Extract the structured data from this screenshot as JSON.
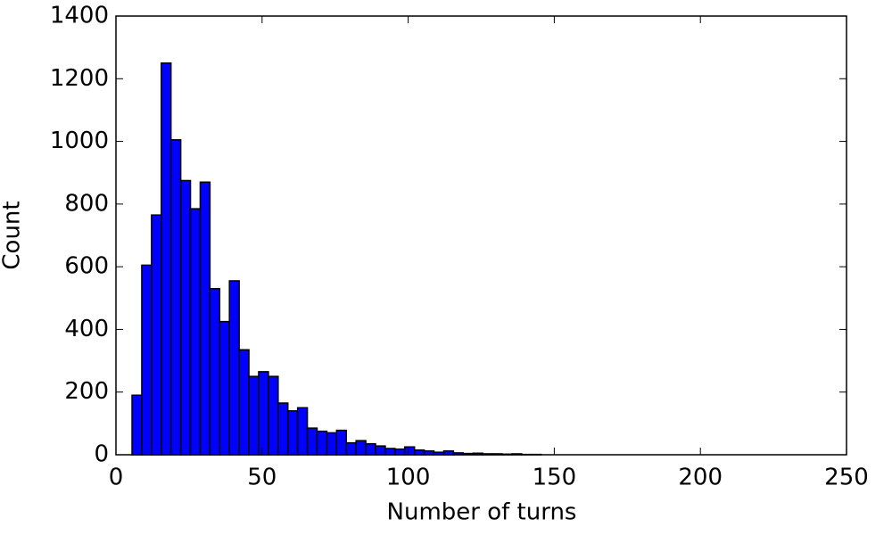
{
  "chart_data": {
    "type": "histogram",
    "x_label": "Number of turns",
    "y_label": "Count",
    "bins": [
      5.5,
      8.83,
      12.17,
      15.5,
      18.83,
      22.17,
      25.5,
      28.83,
      32.17,
      35.5,
      38.83,
      42.17,
      45.5,
      48.83,
      52.17,
      55.5,
      58.83,
      62.17,
      65.5,
      68.83,
      72.17,
      75.5,
      78.83,
      82.17,
      85.5,
      88.83,
      92.17,
      95.5,
      98.83,
      102.17,
      105.5,
      108.83,
      112.17,
      115.5,
      118.83,
      122.17,
      125.5,
      128.83,
      132.17,
      135.5,
      138.83,
      142.17,
      145.5
    ],
    "values": [
      190,
      605,
      765,
      1250,
      1005,
      875,
      785,
      870,
      530,
      425,
      555,
      335,
      250,
      265,
      250,
      165,
      140,
      150,
      85,
      75,
      70,
      78,
      38,
      45,
      35,
      28,
      20,
      18,
      25,
      15,
      12,
      8,
      12,
      6,
      4,
      5,
      3,
      3,
      2,
      3,
      1,
      1
    ],
    "color": "#0000ff",
    "xlim": [
      0,
      250
    ],
    "xticks": [
      0,
      50,
      100,
      150,
      200,
      250
    ],
    "ylim": [
      0,
      1400
    ],
    "yticks": [
      0,
      200,
      400,
      600,
      800,
      1000,
      1200,
      1400
    ],
    "grid": false
  }
}
